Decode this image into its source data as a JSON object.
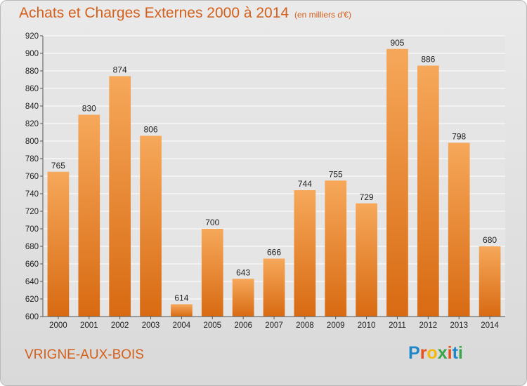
{
  "header": {
    "title": "Achats et Charges Externes 2000 à 2014",
    "subtitle": "(en milliers d'€)"
  },
  "footer": {
    "commune": "VRIGNE-AUX-BOIS",
    "logo_letters": [
      "P",
      "r",
      "o",
      "x",
      "i",
      "t",
      "i"
    ]
  },
  "colors": {
    "bar_light": "#f6a85a",
    "bar_dark": "#d86a12",
    "title": "#d4601c",
    "grid": "#ffffff",
    "logo": [
      "#1f86c9",
      "#e84f1c",
      "#f3b90f",
      "#3aa54a",
      "#e84f1c",
      "#1f86c9",
      "#3aa54a"
    ]
  },
  "chart_data": {
    "type": "bar",
    "title": "Achats et Charges Externes 2000 à 2014",
    "subtitle": "(en milliers d'€)",
    "xlabel": "",
    "ylabel": "",
    "categories": [
      "2000",
      "2001",
      "2002",
      "2003",
      "2004",
      "2005",
      "2006",
      "2007",
      "2008",
      "2009",
      "2010",
      "2011",
      "2012",
      "2013",
      "2014"
    ],
    "values": [
      765,
      830,
      874,
      806,
      614,
      700,
      643,
      666,
      744,
      755,
      729,
      905,
      886,
      798,
      680
    ],
    "ylim": [
      600,
      920
    ],
    "yticks": [
      600,
      620,
      640,
      660,
      680,
      700,
      720,
      740,
      760,
      780,
      800,
      820,
      840,
      860,
      880,
      900,
      920
    ],
    "grid": true,
    "legend": "none"
  }
}
